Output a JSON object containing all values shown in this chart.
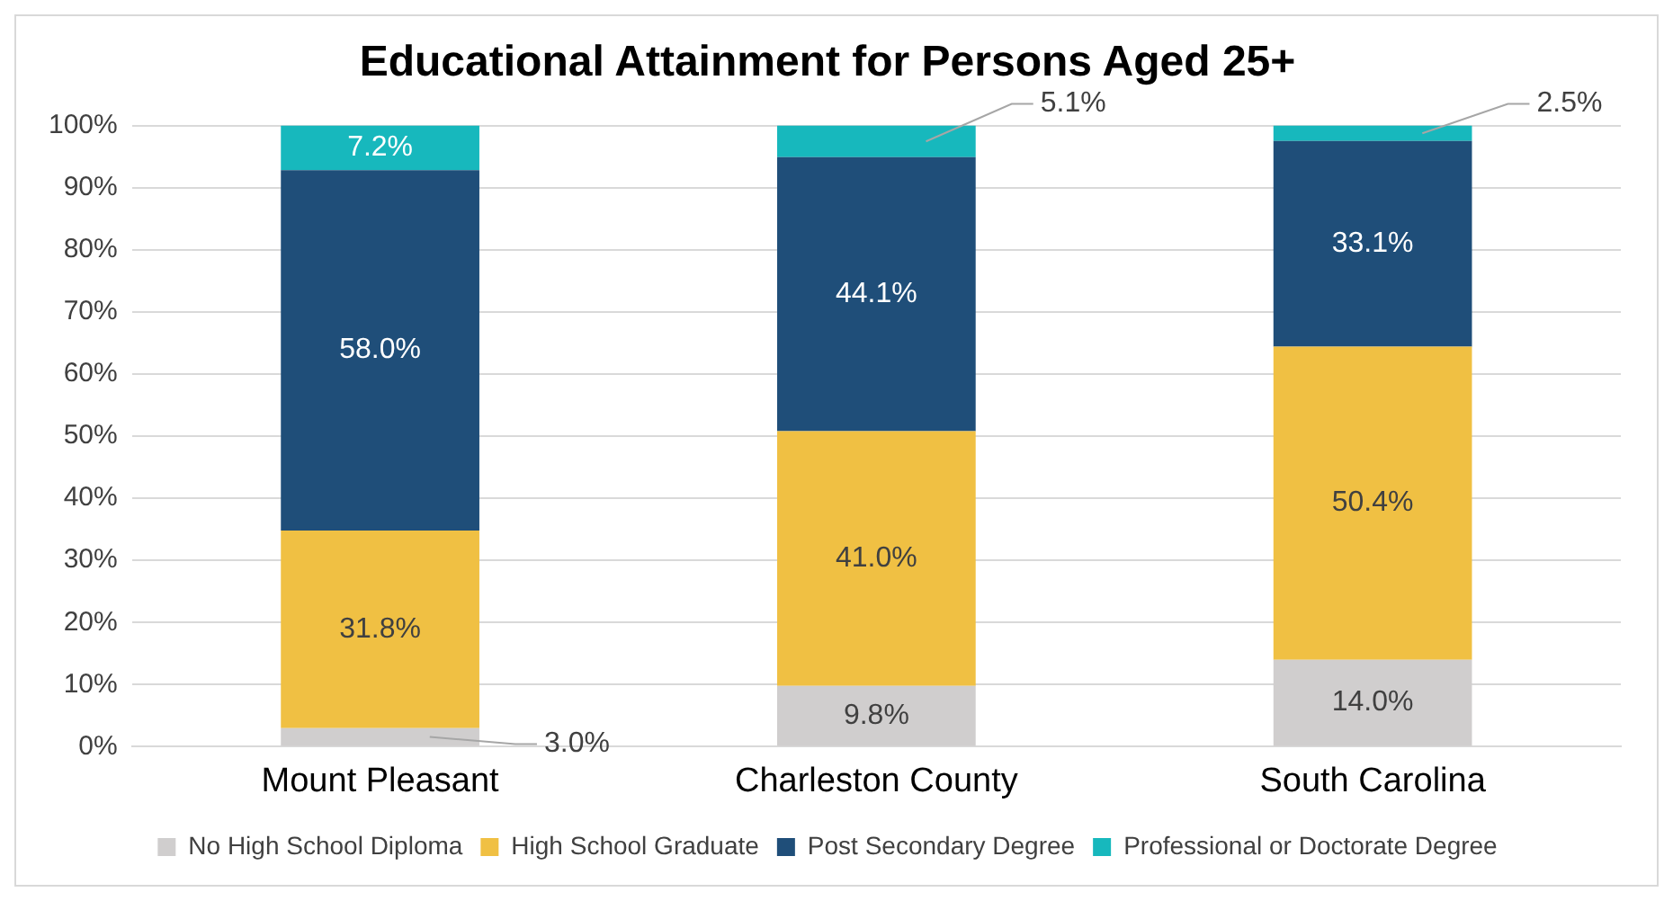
{
  "chart_data": {
    "type": "bar",
    "title": "Educational Attainment for Persons Aged 25+",
    "categories": [
      "Mount Pleasant",
      "Charleston County",
      "South Carolina"
    ],
    "stacked": true,
    "series": [
      {
        "name": "No High School Diploma",
        "color": "#d0cece",
        "values": [
          3.0,
          9.8,
          14.0
        ],
        "value_labels": [
          "3.0%",
          "9.8%",
          "14.0%"
        ]
      },
      {
        "name": "High School Graduate",
        "color": "#f0c043",
        "values": [
          31.8,
          41.0,
          50.4
        ],
        "value_labels": [
          "31.8%",
          "41.0%",
          "50.4%"
        ]
      },
      {
        "name": "Post Secondary Degree",
        "color": "#1f4e79",
        "values": [
          58.0,
          44.1,
          33.1
        ],
        "value_labels": [
          "58.0%",
          "44.1%",
          "33.1%"
        ]
      },
      {
        "name": "Professional or Doctorate Degree",
        "color": "#17b8bd",
        "values": [
          7.2,
          5.1,
          2.5
        ],
        "value_labels": [
          "7.2%",
          "5.1%",
          "2.5%"
        ]
      }
    ],
    "ylim": [
      0,
      100
    ],
    "yticks": [
      {
        "value": 0,
        "label": "0%"
      },
      {
        "value": 10,
        "label": "10%"
      },
      {
        "value": 20,
        "label": "20%"
      },
      {
        "value": 30,
        "label": "30%"
      },
      {
        "value": 40,
        "label": "40%"
      },
      {
        "value": 50,
        "label": "50%"
      },
      {
        "value": 60,
        "label": "60%"
      },
      {
        "value": 70,
        "label": "70%"
      },
      {
        "value": 80,
        "label": "80%"
      },
      {
        "value": 90,
        "label": "90%"
      },
      {
        "value": 100,
        "label": "100%"
      }
    ],
    "grid": "y",
    "legend": "bottom"
  }
}
